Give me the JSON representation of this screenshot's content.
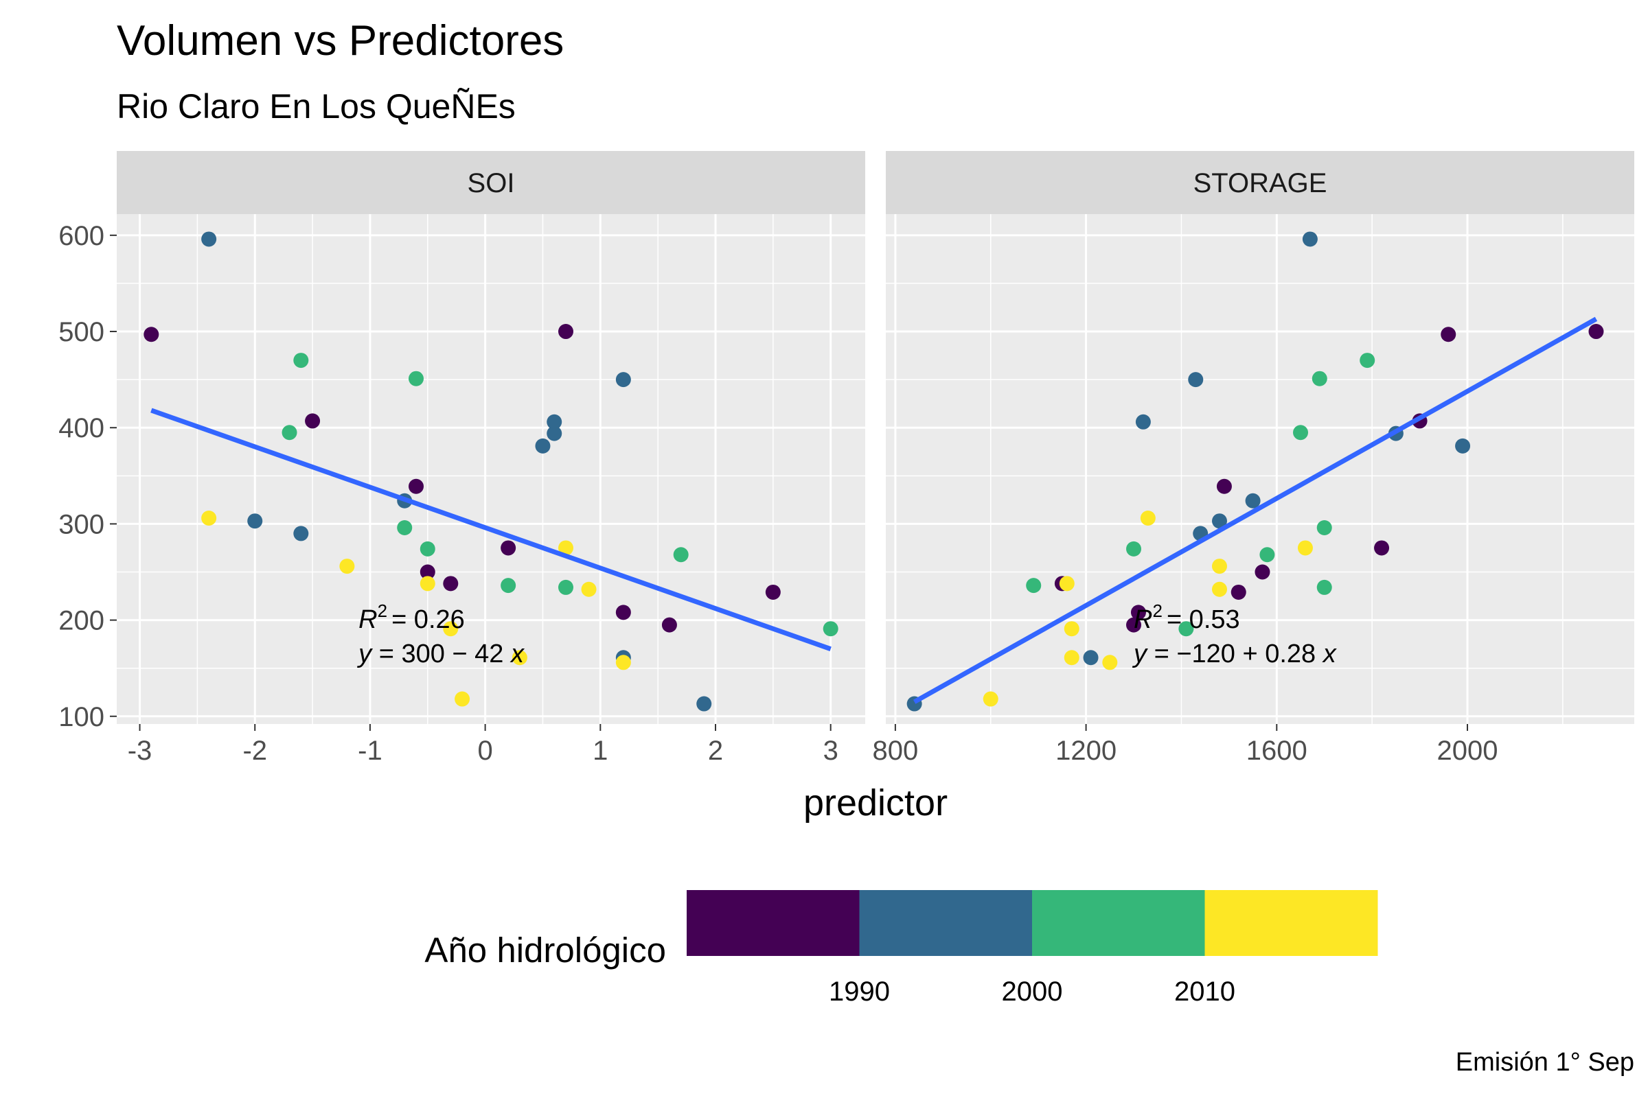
{
  "chart_data": {
    "type": "scatter",
    "title": "Volumen vs Predictores",
    "subtitle": "Rio Claro En Los QueÑEs",
    "xlabel": "predictor",
    "ylabel": "",
    "caption": "Emisión 1° Sep",
    "ylim": [
      92,
      622
    ],
    "y_ticks": [
      "100",
      "200",
      "300",
      "400",
      "500",
      "600"
    ],
    "legend": {
      "title": "Año hidrológico",
      "position": "bottom",
      "breaks": [
        "1990",
        "2000",
        "2010"
      ],
      "colors": [
        "#440154",
        "#31688E",
        "#35B779",
        "#FDE725"
      ]
    },
    "line_color": "#3366FF",
    "panels": [
      {
        "name": "SOI",
        "xlim": [
          -3.2,
          3.3
        ],
        "x_ticks": [
          "-3",
          "-2",
          "-1",
          "0",
          "1",
          "2",
          "3"
        ],
        "x_tick_values": [
          -3,
          -2,
          -1,
          0,
          1,
          2,
          3
        ],
        "fit_line": {
          "x": [
            -2.9,
            3.0
          ],
          "y": [
            418,
            170
          ]
        },
        "annotation": {
          "r2": "= 0.26",
          "equation": "= 300 − 42",
          "x": -1.1,
          "y": 192
        },
        "points": [
          {
            "x": -2.9,
            "y": 497,
            "group": 0
          },
          {
            "x": -1.5,
            "y": 407,
            "group": 0
          },
          {
            "x": -0.6,
            "y": 339,
            "group": 0
          },
          {
            "x": 0.2,
            "y": 275,
            "group": 0
          },
          {
            "x": -0.5,
            "y": 250,
            "group": 0
          },
          {
            "x": -0.3,
            "y": 238,
            "group": 0
          },
          {
            "x": 0.7,
            "y": 500,
            "group": 0
          },
          {
            "x": 1.2,
            "y": 208,
            "group": 0
          },
          {
            "x": 1.6,
            "y": 195,
            "group": 0
          },
          {
            "x": 2.5,
            "y": 229,
            "group": 0
          },
          {
            "x": -2.4,
            "y": 596,
            "group": 1
          },
          {
            "x": -2.0,
            "y": 303,
            "group": 1
          },
          {
            "x": -1.6,
            "y": 290,
            "group": 1
          },
          {
            "x": -0.7,
            "y": 324,
            "group": 1
          },
          {
            "x": 0.5,
            "y": 381,
            "group": 1
          },
          {
            "x": 0.6,
            "y": 394,
            "group": 1
          },
          {
            "x": 0.6,
            "y": 406,
            "group": 1
          },
          {
            "x": 1.2,
            "y": 450,
            "group": 1
          },
          {
            "x": 1.2,
            "y": 161,
            "group": 1
          },
          {
            "x": 1.9,
            "y": 113,
            "group": 1
          },
          {
            "x": -1.7,
            "y": 395,
            "group": 2
          },
          {
            "x": -1.6,
            "y": 470,
            "group": 2
          },
          {
            "x": -0.6,
            "y": 451,
            "group": 2
          },
          {
            "x": -0.7,
            "y": 296,
            "group": 2
          },
          {
            "x": -0.5,
            "y": 274,
            "group": 2
          },
          {
            "x": 0.2,
            "y": 236,
            "group": 2
          },
          {
            "x": 0.7,
            "y": 234,
            "group": 2
          },
          {
            "x": 1.7,
            "y": 268,
            "group": 2
          },
          {
            "x": 3.0,
            "y": 191,
            "group": 2
          },
          {
            "x": -2.4,
            "y": 306,
            "group": 3
          },
          {
            "x": -1.2,
            "y": 256,
            "group": 3
          },
          {
            "x": -0.5,
            "y": 238,
            "group": 3
          },
          {
            "x": -0.3,
            "y": 191,
            "group": 3
          },
          {
            "x": -0.2,
            "y": 118,
            "group": 3
          },
          {
            "x": 0.3,
            "y": 161,
            "group": 3
          },
          {
            "x": 0.7,
            "y": 275,
            "group": 3
          },
          {
            "x": 0.9,
            "y": 232,
            "group": 3
          },
          {
            "x": 1.2,
            "y": 156,
            "group": 3
          }
        ]
      },
      {
        "name": "STORAGE",
        "xlim": [
          780,
          2350
        ],
        "x_ticks": [
          "800",
          "1200",
          "1600",
          "2000"
        ],
        "x_tick_values": [
          800,
          1200,
          1600,
          2000
        ],
        "fit_line": {
          "x": [
            840,
            2270
          ],
          "y": [
            115,
            513
          ]
        },
        "annotation": {
          "r2": "= 0.53",
          "equation": "= −120 + 0.28",
          "x": 1300,
          "y": 192
        },
        "points": [
          {
            "x": 1960,
            "y": 497,
            "group": 0
          },
          {
            "x": 2270,
            "y": 500,
            "group": 0
          },
          {
            "x": 1900,
            "y": 407,
            "group": 0
          },
          {
            "x": 1490,
            "y": 339,
            "group": 0
          },
          {
            "x": 1820,
            "y": 275,
            "group": 0
          },
          {
            "x": 1570,
            "y": 250,
            "group": 0
          },
          {
            "x": 1520,
            "y": 229,
            "group": 0
          },
          {
            "x": 1150,
            "y": 238,
            "group": 0
          },
          {
            "x": 1310,
            "y": 208,
            "group": 0
          },
          {
            "x": 1300,
            "y": 195,
            "group": 0
          },
          {
            "x": 1670,
            "y": 596,
            "group": 1
          },
          {
            "x": 1430,
            "y": 450,
            "group": 1
          },
          {
            "x": 1320,
            "y": 406,
            "group": 1
          },
          {
            "x": 1850,
            "y": 394,
            "group": 1
          },
          {
            "x": 1990,
            "y": 381,
            "group": 1
          },
          {
            "x": 1550,
            "y": 324,
            "group": 1
          },
          {
            "x": 1480,
            "y": 303,
            "group": 1
          },
          {
            "x": 1440,
            "y": 290,
            "group": 1
          },
          {
            "x": 1210,
            "y": 161,
            "group": 1
          },
          {
            "x": 840,
            "y": 113,
            "group": 1
          },
          {
            "x": 1790,
            "y": 470,
            "group": 2
          },
          {
            "x": 1690,
            "y": 451,
            "group": 2
          },
          {
            "x": 1650,
            "y": 395,
            "group": 2
          },
          {
            "x": 1700,
            "y": 296,
            "group": 2
          },
          {
            "x": 1300,
            "y": 274,
            "group": 2
          },
          {
            "x": 1580,
            "y": 268,
            "group": 2
          },
          {
            "x": 1090,
            "y": 236,
            "group": 2
          },
          {
            "x": 1700,
            "y": 234,
            "group": 2
          },
          {
            "x": 1410,
            "y": 191,
            "group": 2
          },
          {
            "x": 1330,
            "y": 306,
            "group": 3
          },
          {
            "x": 1480,
            "y": 256,
            "group": 3
          },
          {
            "x": 1660,
            "y": 275,
            "group": 3
          },
          {
            "x": 1160,
            "y": 238,
            "group": 3
          },
          {
            "x": 1480,
            "y": 232,
            "group": 3
          },
          {
            "x": 1170,
            "y": 191,
            "group": 3
          },
          {
            "x": 1170,
            "y": 161,
            "group": 3
          },
          {
            "x": 1250,
            "y": 156,
            "group": 3
          },
          {
            "x": 1000,
            "y": 118,
            "group": 3
          }
        ]
      }
    ]
  }
}
